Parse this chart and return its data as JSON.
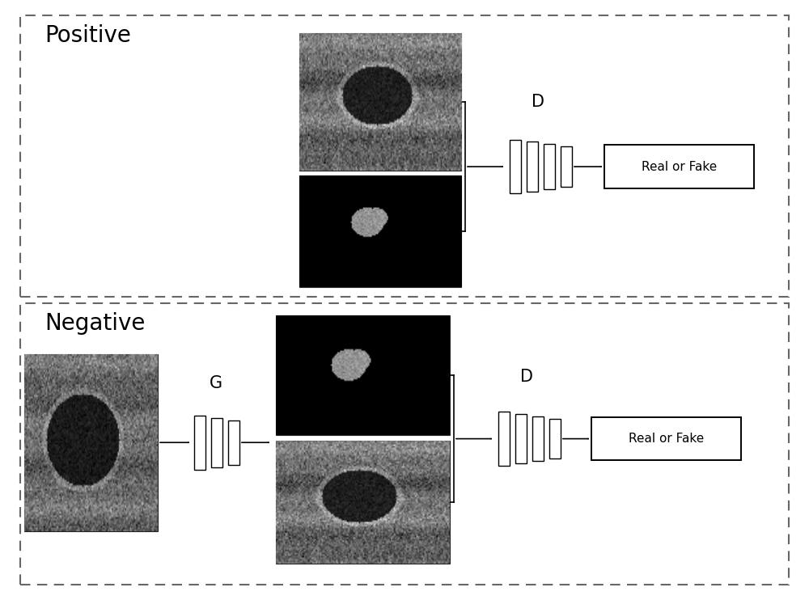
{
  "bg_color": "#ffffff",
  "border_color": "#555555",
  "text_color": "#000000",
  "title_pos": "Positive",
  "neg_title": "Negative",
  "g_label": "G",
  "d_label": "D",
  "real_or_fake": "Real or Fake",
  "fig_width": 10.0,
  "fig_height": 7.42,
  "dpi": 100
}
